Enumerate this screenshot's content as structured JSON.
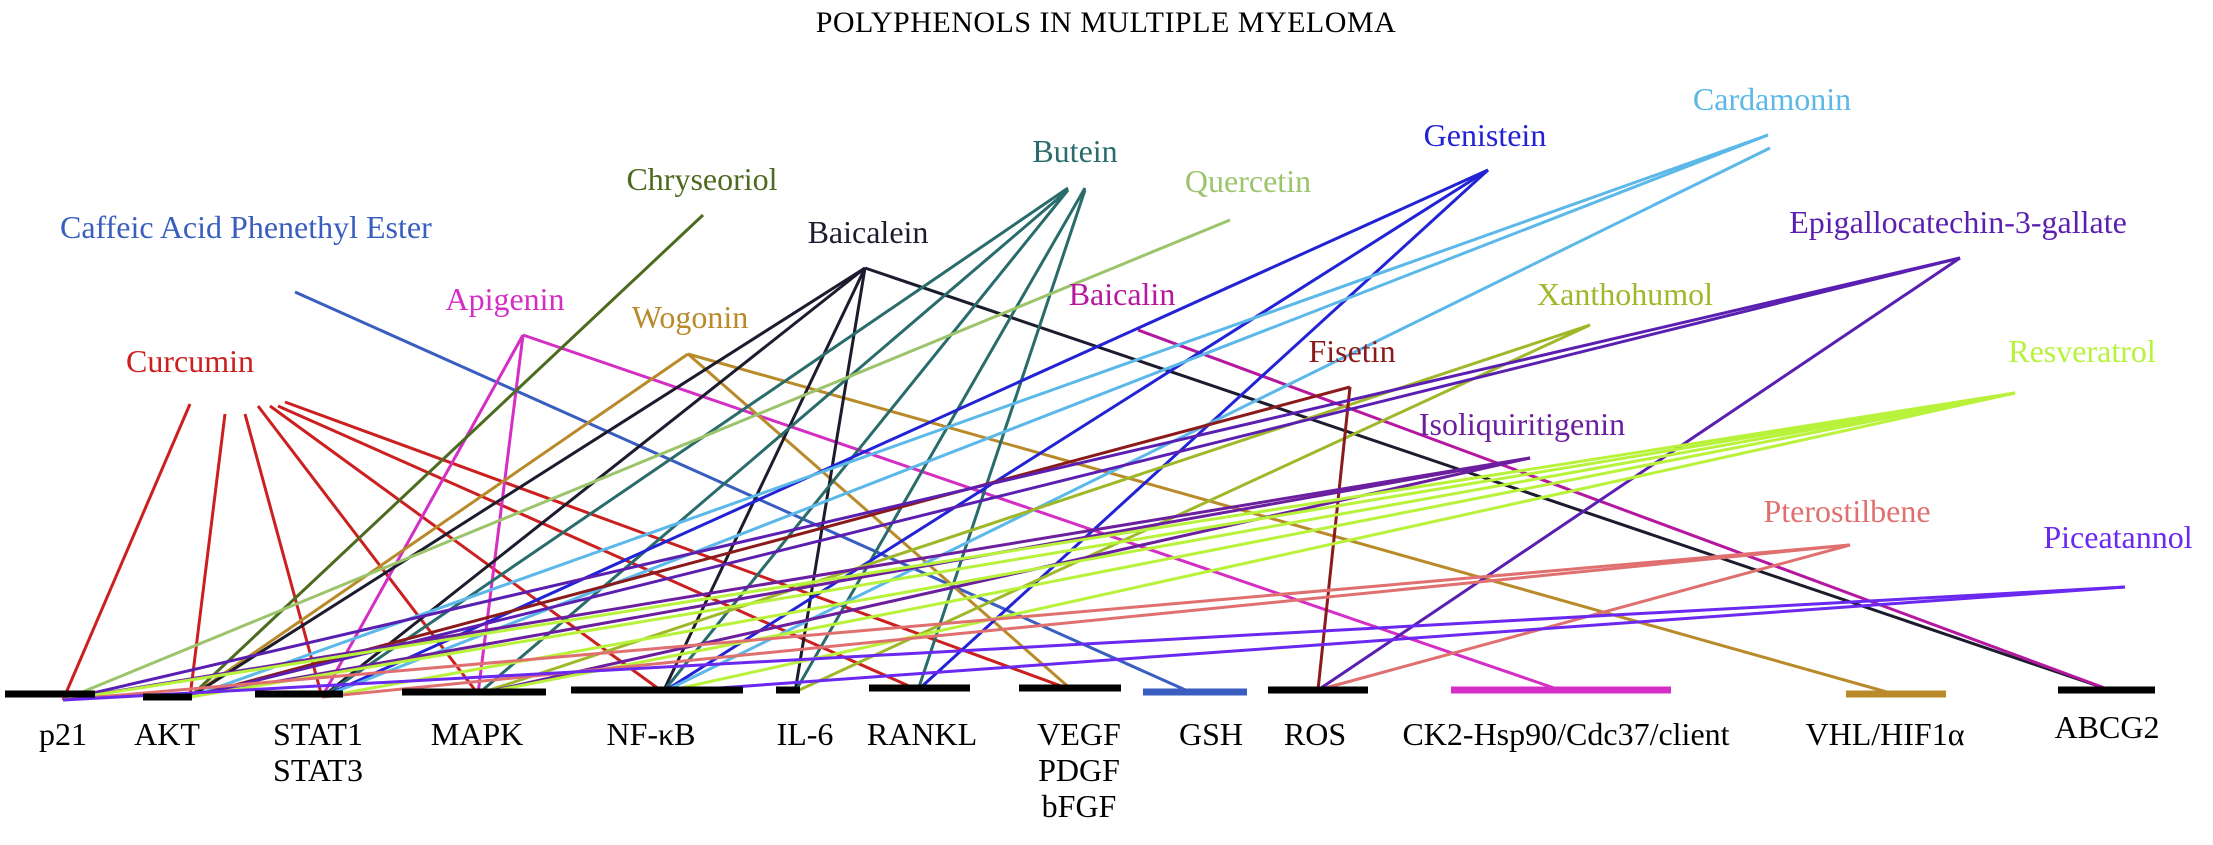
{
  "title": "POLYPHENOLS IN MULTIPLE MYELOMA",
  "targets": [
    {
      "id": "p21",
      "lines": [
        "p21"
      ]
    },
    {
      "id": "akt",
      "lines": [
        "AKT"
      ]
    },
    {
      "id": "stat",
      "lines": [
        "STAT1",
        "STAT3"
      ]
    },
    {
      "id": "mapk",
      "lines": [
        "MAPK"
      ]
    },
    {
      "id": "nfkb",
      "lines": [
        "NF-κB"
      ]
    },
    {
      "id": "il6",
      "lines": [
        "IL-6"
      ]
    },
    {
      "id": "rankl",
      "lines": [
        "RANKL"
      ]
    },
    {
      "id": "vegf",
      "lines": [
        "VEGF",
        "PDGF",
        "bFGF"
      ]
    },
    {
      "id": "gsh",
      "lines": [
        "GSH"
      ]
    },
    {
      "id": "ros",
      "lines": [
        "ROS"
      ]
    },
    {
      "id": "ck2",
      "lines": [
        "CK2-Hsp90/Cdc37/client"
      ]
    },
    {
      "id": "vhl",
      "lines": [
        "VHL/HIF1α"
      ]
    },
    {
      "id": "abcg2",
      "lines": [
        "ABCG2"
      ]
    }
  ],
  "polyphenols": [
    {
      "id": "curcumin",
      "name": "Curcumin",
      "color": "#cc1f1f",
      "targets": [
        "p21",
        "akt",
        "stat",
        "mapk",
        "nfkb",
        "rankl",
        "vegf"
      ]
    },
    {
      "id": "cape",
      "name": "Caffeic Acid Phenethyl Ester",
      "color": "#3a5ec0",
      "targets": [
        "gsh"
      ]
    },
    {
      "id": "apigenin",
      "name": "Apigenin",
      "color": "#d42ec4",
      "targets": [
        "stat",
        "mapk",
        "ck2"
      ]
    },
    {
      "id": "chryseoriol",
      "name": "Chryseoriol",
      "color": "#4d6b1f",
      "targets": [
        "akt"
      ]
    },
    {
      "id": "wogonin",
      "name": "Wogonin",
      "color": "#b98a2a",
      "targets": [
        "akt",
        "vegf",
        "vhl"
      ]
    },
    {
      "id": "baicalein",
      "name": "Baicalein",
      "color": "#1c1c2e",
      "targets": [
        "akt",
        "stat",
        "nfkb",
        "il6",
        "abcg2"
      ]
    },
    {
      "id": "butein",
      "name": "Butein",
      "color": "#2a6b6b",
      "targets": [
        "stat",
        "mapk",
        "nfkb",
        "il6",
        "rankl"
      ]
    },
    {
      "id": "quercetin",
      "name": "Quercetin",
      "color": "#9cc46b",
      "targets": [
        "p21"
      ]
    },
    {
      "id": "baicalin",
      "name": "Baicalin",
      "color": "#b5179e",
      "targets": [
        "abcg2"
      ]
    },
    {
      "id": "genistein",
      "name": "Genistein",
      "color": "#2323d6",
      "targets": [
        "stat",
        "nfkb",
        "rankl"
      ]
    },
    {
      "id": "cardamonin",
      "name": "Cardamonin",
      "color": "#5bb8e8",
      "targets": [
        "akt",
        "stat",
        "nfkb"
      ]
    },
    {
      "id": "xanthohumol",
      "name": "Xanthohumol",
      "color": "#9fb82a",
      "targets": [
        "mapk",
        "il6"
      ]
    },
    {
      "id": "fisetin",
      "name": "Fisetin",
      "color": "#8b1a1a",
      "targets": [
        "akt",
        "ros"
      ]
    },
    {
      "id": "egcg",
      "name": "Epigallocatechin-3-gallate",
      "color": "#5a1fb0",
      "targets": [
        "p21",
        "akt",
        "ros"
      ]
    },
    {
      "id": "isoliquiritigenin",
      "name": "Isoliquiritigenin",
      "color": "#6b1f9e",
      "targets": [
        "p21",
        "akt",
        "mapk"
      ]
    },
    {
      "id": "resveratrol",
      "name": "Resveratrol",
      "color": "#b8f23a",
      "targets": [
        "p21",
        "akt",
        "stat",
        "mapk",
        "nfkb"
      ]
    },
    {
      "id": "pterostilbene",
      "name": "Pterostilbene",
      "color": "#e07070",
      "targets": [
        "p21",
        "stat",
        "ros"
      ]
    },
    {
      "id": "piceatannol",
      "name": "Piceatannol",
      "color": "#6a28f0",
      "targets": [
        "p21",
        "nfkb"
      ]
    }
  ]
}
